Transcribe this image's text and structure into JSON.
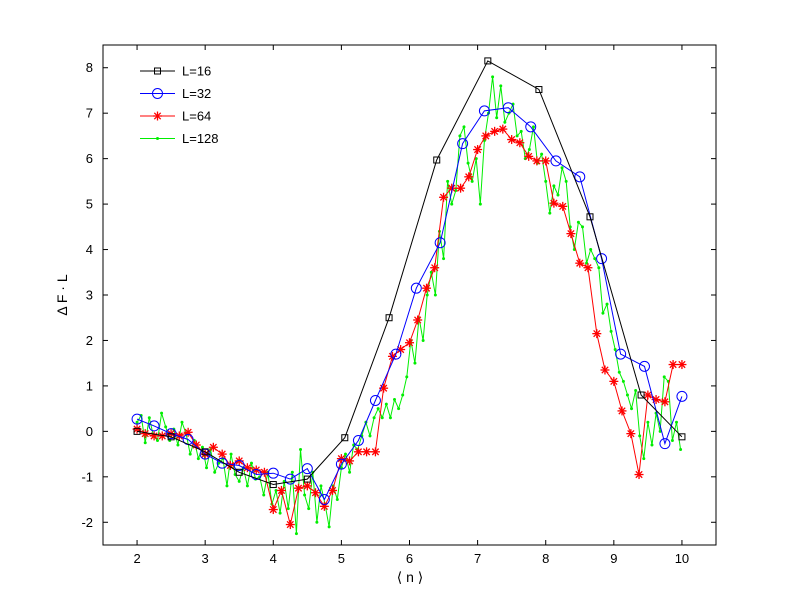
{
  "chart_data": {
    "type": "line",
    "title": "",
    "xlabel": "⟨ n ⟩",
    "ylabel": "Δ F · L",
    "xlim": [
      1.5,
      10.5
    ],
    "ylim": [
      -2.5,
      8.5
    ],
    "xticks": [
      2,
      3,
      4,
      5,
      6,
      7,
      8,
      9,
      10
    ],
    "yticks": [
      -2,
      -1,
      0,
      1,
      2,
      3,
      4,
      5,
      6,
      7,
      8
    ],
    "grid": false,
    "legend_position": "top-left",
    "series": [
      {
        "name": "L=16",
        "color": "#000000",
        "marker": "square",
        "x": [
          2.0,
          2.5,
          3.0,
          3.5,
          4.0,
          4.5,
          5.05,
          5.7,
          6.4,
          7.15,
          7.9,
          8.65,
          9.4,
          10.0
        ],
        "y": [
          0.0,
          -0.12,
          -0.45,
          -0.9,
          -1.17,
          -1.05,
          -0.14,
          2.5,
          5.97,
          8.15,
          7.52,
          4.72,
          0.8,
          -0.12
        ]
      },
      {
        "name": "L=32",
        "color": "#0000ff",
        "marker": "circle",
        "x": [
          2.0,
          2.25,
          2.5,
          2.75,
          3.0,
          3.25,
          3.5,
          3.75,
          4.0,
          4.25,
          4.5,
          4.75,
          5.0,
          5.25,
          5.5,
          5.8,
          6.1,
          6.45,
          6.78,
          7.1,
          7.45,
          7.78,
          8.15,
          8.5,
          8.82,
          9.1,
          9.45,
          9.75,
          10.0
        ],
        "y": [
          0.27,
          0.12,
          -0.05,
          -0.18,
          -0.5,
          -0.7,
          -0.75,
          -0.95,
          -0.92,
          -1.05,
          -0.82,
          -1.5,
          -0.72,
          -0.2,
          0.68,
          1.7,
          3.15,
          4.15,
          6.33,
          7.05,
          7.12,
          6.7,
          5.95,
          5.6,
          3.8,
          1.7,
          1.43,
          -0.27,
          0.77
        ]
      },
      {
        "name": "L=64",
        "color": "#ff0000",
        "marker": "star",
        "x": [
          2.0,
          2.12,
          2.25,
          2.37,
          2.5,
          2.62,
          2.75,
          2.87,
          3.0,
          3.12,
          3.25,
          3.37,
          3.5,
          3.62,
          3.75,
          3.87,
          4.0,
          4.12,
          4.25,
          4.37,
          4.5,
          4.62,
          4.75,
          4.87,
          5.0,
          5.12,
          5.25,
          5.37,
          5.5,
          5.62,
          5.75,
          5.87,
          6.0,
          6.12,
          6.25,
          6.37,
          6.5,
          6.62,
          6.75,
          6.87,
          7.0,
          7.12,
          7.25,
          7.37,
          7.5,
          7.62,
          7.75,
          7.87,
          8.0,
          8.12,
          8.25,
          8.37,
          8.5,
          8.62,
          8.75,
          8.87,
          9.0,
          9.12,
          9.25,
          9.37,
          9.5,
          9.62,
          9.75,
          9.87,
          10.0
        ],
        "y": [
          0.05,
          -0.05,
          -0.1,
          -0.1,
          -0.05,
          -0.1,
          -0.02,
          -0.3,
          -0.5,
          -0.35,
          -0.5,
          -0.75,
          -0.65,
          -0.8,
          -0.85,
          -0.9,
          -1.72,
          -1.3,
          -2.05,
          -1.25,
          -1.2,
          -1.35,
          -1.65,
          -1.3,
          -0.6,
          -0.65,
          -0.45,
          -0.45,
          -0.45,
          0.95,
          1.65,
          1.8,
          1.95,
          2.45,
          3.15,
          3.6,
          5.15,
          5.35,
          5.35,
          5.6,
          6.2,
          6.5,
          6.6,
          6.65,
          6.42,
          6.35,
          6.05,
          5.95,
          5.95,
          5.02,
          4.95,
          4.35,
          3.7,
          3.6,
          2.15,
          1.35,
          1.1,
          0.45,
          -0.05,
          -0.95,
          0.8,
          0.7,
          0.65,
          1.47,
          1.47
        ]
      },
      {
        "name": "L=128",
        "color": "#00ee00",
        "marker": "dot",
        "x": [
          2.0,
          2.06,
          2.12,
          2.18,
          2.24,
          2.3,
          2.36,
          2.42,
          2.48,
          2.54,
          2.6,
          2.66,
          2.72,
          2.78,
          2.84,
          2.9,
          2.96,
          3.02,
          3.08,
          3.14,
          3.2,
          3.26,
          3.32,
          3.38,
          3.44,
          3.5,
          3.56,
          3.62,
          3.68,
          3.74,
          3.8,
          3.86,
          3.92,
          3.98,
          4.04,
          4.1,
          4.16,
          4.22,
          4.28,
          4.34,
          4.4,
          4.46,
          4.52,
          4.58,
          4.64,
          4.7,
          4.76,
          4.82,
          4.88,
          4.94,
          5.0,
          5.06,
          5.12,
          5.18,
          5.24,
          5.3,
          5.36,
          5.42,
          5.48,
          5.54,
          5.6,
          5.66,
          5.72,
          5.78,
          5.84,
          5.9,
          5.96,
          6.02,
          6.08,
          6.14,
          6.2,
          6.26,
          6.32,
          6.38,
          6.44,
          6.5,
          6.56,
          6.62,
          6.68,
          6.74,
          6.8,
          6.86,
          6.92,
          6.98,
          7.04,
          7.1,
          7.16,
          7.22,
          7.28,
          7.34,
          7.4,
          7.46,
          7.52,
          7.58,
          7.64,
          7.7,
          7.76,
          7.82,
          7.88,
          7.94,
          8.0,
          8.06,
          8.12,
          8.18,
          8.24,
          8.3,
          8.36,
          8.42,
          8.48,
          8.54,
          8.6,
          8.66,
          8.72,
          8.78,
          8.84,
          8.9,
          8.96,
          9.02,
          9.08,
          9.14,
          9.2,
          9.26,
          9.32,
          9.38,
          9.44,
          9.5,
          9.56,
          9.62,
          9.68,
          9.74,
          9.8,
          9.86,
          9.92,
          9.98
        ],
        "y": [
          0.2,
          0.35,
          -0.25,
          0.3,
          -0.1,
          -0.2,
          0.4,
          0.1,
          -0.2,
          0.05,
          -0.3,
          0.2,
          -0.05,
          -0.5,
          -0.2,
          -0.6,
          -0.35,
          -0.8,
          -0.4,
          -0.9,
          -0.7,
          -0.6,
          -1.2,
          -0.5,
          -0.95,
          -1.1,
          -0.8,
          -1.2,
          -0.7,
          -1.05,
          -1.0,
          -1.4,
          -0.9,
          -1.6,
          -1.3,
          -1.8,
          -1.1,
          -1.7,
          -0.9,
          -2.25,
          -0.4,
          -1.4,
          -1.7,
          -0.9,
          -2.0,
          -1.2,
          -1.6,
          -2.1,
          -1.2,
          -1.5,
          -0.8,
          -0.5,
          -0.9,
          -0.3,
          -0.4,
          -0.1,
          0.2,
          -0.1,
          0.3,
          0.5,
          0.3,
          0.6,
          0.3,
          0.7,
          0.5,
          0.8,
          1.2,
          2.0,
          1.5,
          2.5,
          2.0,
          3.0,
          3.5,
          3.0,
          4.4,
          3.8,
          5.5,
          5.0,
          5.3,
          6.5,
          6.7,
          5.9,
          5.5,
          6.0,
          5.0,
          6.4,
          7.0,
          7.8,
          6.9,
          7.6,
          6.8,
          7.0,
          7.2,
          6.5,
          6.6,
          6.0,
          6.2,
          6.7,
          5.9,
          6.1,
          5.5,
          4.8,
          5.4,
          5.2,
          5.8,
          5.5,
          4.5,
          4.0,
          4.6,
          4.5,
          3.7,
          4.0,
          3.8,
          3.6,
          2.6,
          2.8,
          2.2,
          1.8,
          1.3,
          1.1,
          0.8,
          0.5,
          0.9,
          -0.1,
          -0.6,
          0.2,
          -0.3,
          0.4,
          0.0,
          1.2,
          1.1,
          -0.2,
          0.2,
          -0.4
        ]
      }
    ]
  }
}
